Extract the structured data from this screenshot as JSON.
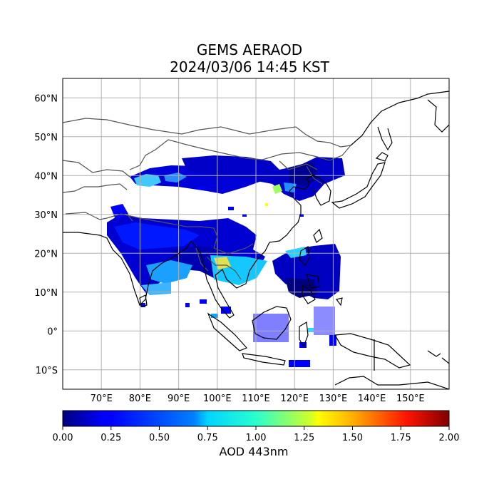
{
  "title": {
    "line1": "GEMS AERAOD",
    "line2": "2024/03/06 14:45 KST"
  },
  "map": {
    "lon_range": [
      60,
      160
    ],
    "lat_range": [
      -15,
      65
    ],
    "lat_ticks": [
      {
        "value": 60,
        "label": "60°N"
      },
      {
        "value": 50,
        "label": "50°N"
      },
      {
        "value": 40,
        "label": "40°N"
      },
      {
        "value": 30,
        "label": "30°N"
      },
      {
        "value": 20,
        "label": "20°N"
      },
      {
        "value": 10,
        "label": "10°N"
      },
      {
        "value": 0,
        "label": "0°"
      },
      {
        "value": -10,
        "label": "10°S"
      }
    ],
    "lon_ticks": [
      {
        "value": 70,
        "label": "70°E"
      },
      {
        "value": 80,
        "label": "80°E"
      },
      {
        "value": 90,
        "label": "90°E"
      },
      {
        "value": 100,
        "label": "100°E"
      },
      {
        "value": 110,
        "label": "110°E"
      },
      {
        "value": 120,
        "label": "120°E"
      },
      {
        "value": 130,
        "label": "130°E"
      },
      {
        "value": 140,
        "label": "140°E"
      },
      {
        "value": 150,
        "label": "150°E"
      }
    ],
    "grid": true
  },
  "colorbar": {
    "label": "AOD 443nm",
    "range": [
      0,
      2
    ],
    "ticks": [
      "0.00",
      "0.25",
      "0.50",
      "0.75",
      "1.00",
      "1.25",
      "1.50",
      "1.75",
      "2.00"
    ],
    "colormap": "jet"
  },
  "colors": {
    "coast": "#000000",
    "border": "#555555",
    "grid": "#b0b0b0"
  }
}
